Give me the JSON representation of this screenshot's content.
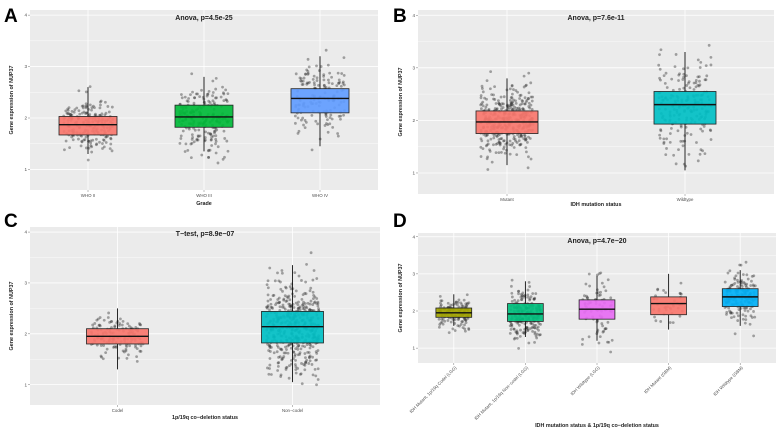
{
  "figure": {
    "ylabel": "Gene expression of NUP37"
  },
  "chart_data": [
    {
      "panel": "A",
      "type": "box",
      "title": "Anova, p=4.5e-25",
      "xlabel": "Grade",
      "ylabel": "Gene expression of NUP37",
      "ylim": [
        0.6,
        4.1
      ],
      "yticks": [
        "1",
        "2",
        "3",
        "4"
      ],
      "categories": [
        "WHO II",
        "WHO III",
        "WHO IV"
      ],
      "rotate_labels": false,
      "colors": [
        "#f8766d",
        "#00ba38",
        "#619cff"
      ],
      "boxes": [
        {
          "min": 1.3,
          "q1": 1.67,
          "median": 1.87,
          "q3": 2.03,
          "max": 2.6,
          "n": 210
        },
        {
          "min": 1.35,
          "q1": 1.82,
          "median": 2.02,
          "q3": 2.25,
          "max": 2.8,
          "n": 220
        },
        {
          "min": 1.45,
          "q1": 2.1,
          "median": 2.38,
          "q3": 2.57,
          "max": 3.2,
          "n": 160
        }
      ]
    },
    {
      "panel": "B",
      "type": "box",
      "title": "Anova, p=7.6e-11",
      "xlabel": "IDH mutation status",
      "ylabel": "Gene expression of NUP37",
      "ylim": [
        0.6,
        4.1
      ],
      "yticks": [
        "1",
        "2",
        "3",
        "4"
      ],
      "categories": [
        "Mutant",
        "Wildtype"
      ],
      "rotate_labels": false,
      "colors": [
        "#f8766d",
        "#00bfc4"
      ],
      "boxes": [
        {
          "min": 1.15,
          "q1": 1.75,
          "median": 1.97,
          "q3": 2.18,
          "max": 2.8,
          "n": 420
        },
        {
          "min": 1.05,
          "q1": 1.93,
          "median": 2.3,
          "q3": 2.55,
          "max": 3.3,
          "n": 200
        }
      ]
    },
    {
      "panel": "C",
      "type": "box",
      "title": "T−test, p=8.9e−07",
      "xlabel": "1p/19q co−deletion status",
      "ylabel": "Gene expression of NUP37",
      "ylim": [
        0.6,
        4.1
      ],
      "yticks": [
        "1",
        "2",
        "3",
        "4"
      ],
      "categories": [
        "Codel",
        "Non−codel"
      ],
      "rotate_labels": false,
      "colors": [
        "#f8766d",
        "#00bfc4"
      ],
      "boxes": [
        {
          "min": 1.3,
          "q1": 1.8,
          "median": 1.95,
          "q3": 2.1,
          "max": 2.5,
          "n": 150
        },
        {
          "min": 1.05,
          "q1": 1.82,
          "median": 2.14,
          "q3": 2.44,
          "max": 3.35,
          "n": 480
        }
      ]
    },
    {
      "panel": "D",
      "type": "box",
      "title": "Anova, p=4.7e−20",
      "xlabel": "IDH mutation status & 1p/19q co−deletion status",
      "ylabel": "Gene expression of NUP37",
      "ylim": [
        0.6,
        4.1
      ],
      "yticks": [
        "1",
        "2",
        "3",
        "4"
      ],
      "categories": [
        "IDH Mutant, 1p/19q Codel (LGG)",
        "IDH Mutant, 1p/19q Non−codel (LGG)",
        "IDH Wildtype (LGG)",
        "IDH Mutant (GBM)",
        "IDH Wildtype (GBM)"
      ],
      "rotate_labels": true,
      "colors": [
        "#a3a500",
        "#00bf7d",
        "#e76bf3",
        "#f8766d",
        "#00b0f6"
      ],
      "boxes": [
        {
          "min": 1.6,
          "q1": 1.83,
          "median": 1.95,
          "q3": 2.08,
          "max": 2.45,
          "n": 150
        },
        {
          "min": 1.3,
          "q1": 1.72,
          "median": 1.92,
          "q3": 2.2,
          "max": 2.8,
          "n": 230
        },
        {
          "min": 1.2,
          "q1": 1.78,
          "median": 2.05,
          "q3": 2.3,
          "max": 2.95,
          "n": 90
        },
        {
          "min": 1.5,
          "q1": 1.9,
          "median": 2.2,
          "q3": 2.38,
          "max": 3.0,
          "n": 40
        },
        {
          "min": 1.6,
          "q1": 2.12,
          "median": 2.38,
          "q3": 2.6,
          "max": 3.1,
          "n": 170
        }
      ]
    }
  ]
}
